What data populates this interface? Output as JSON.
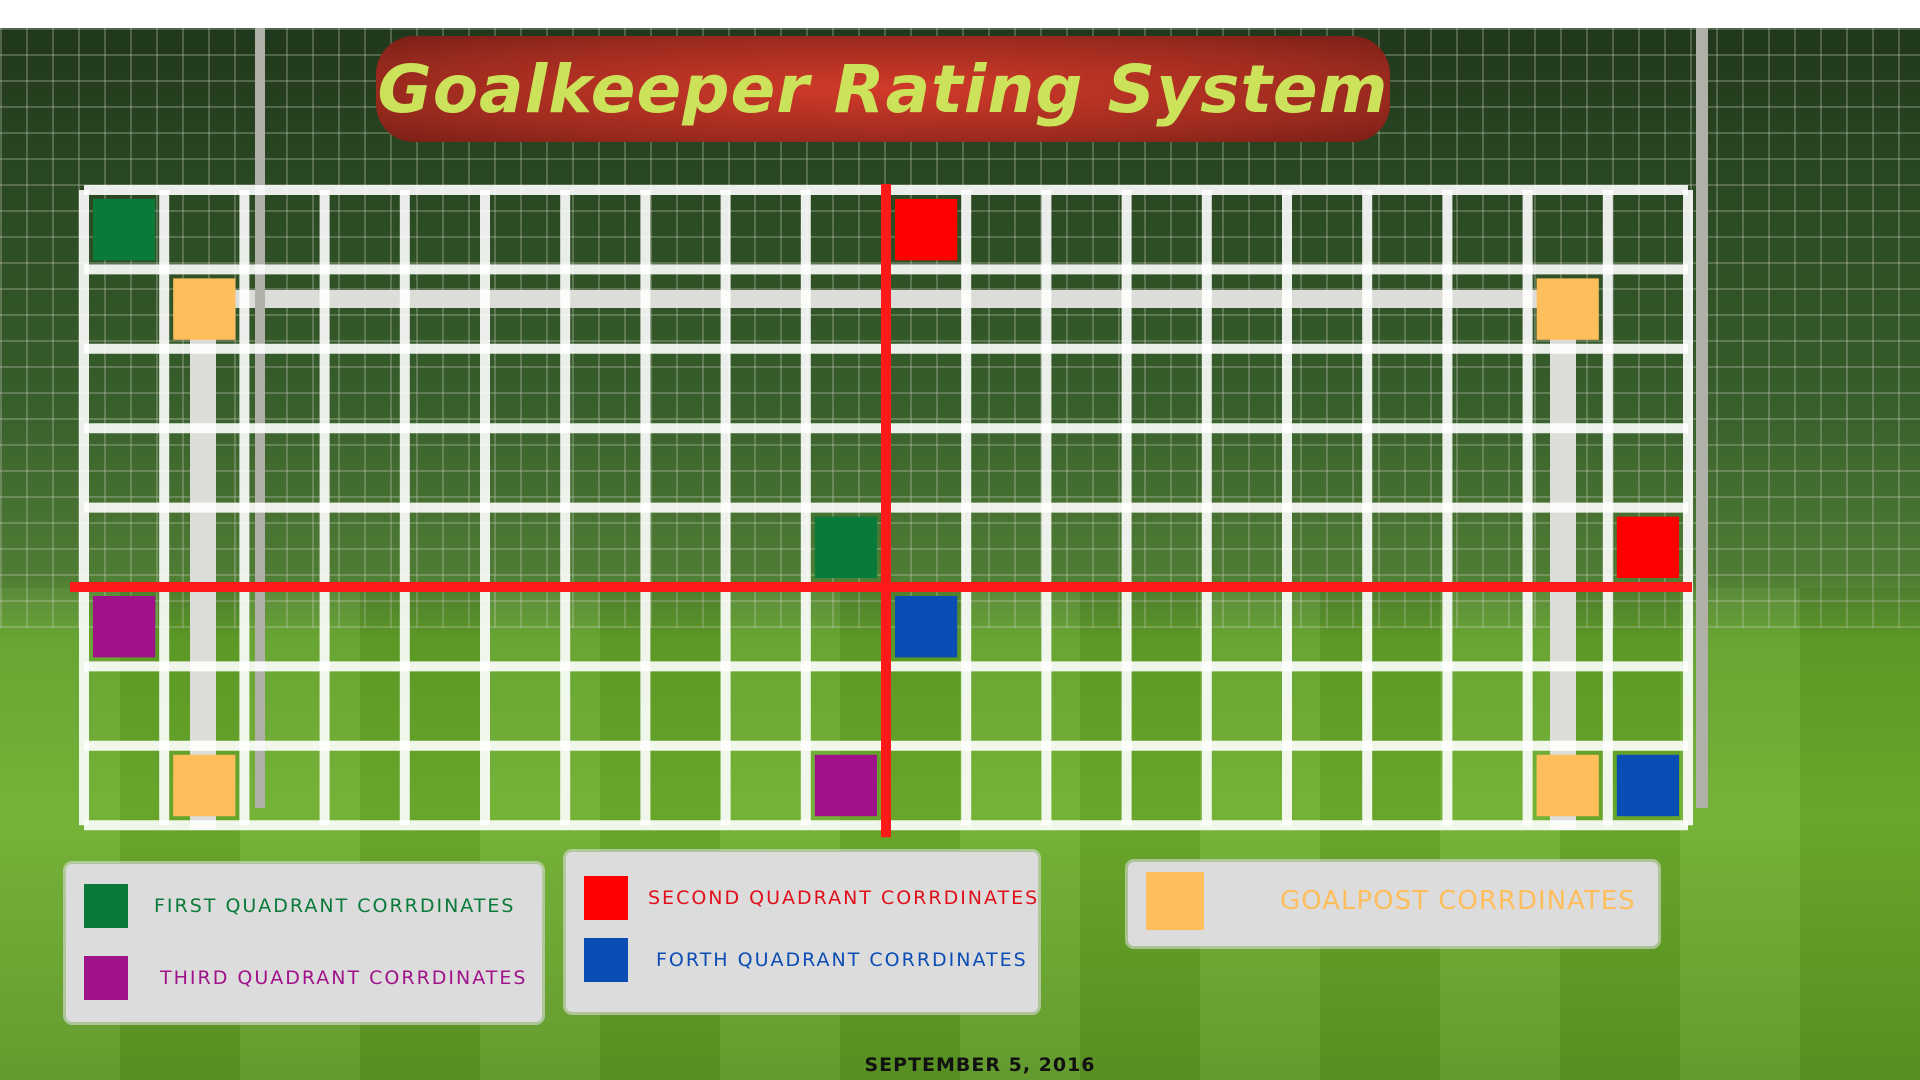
{
  "title": "Goalkeeper Rating System",
  "date": "SEPTEMBER 5, 2016",
  "colors": {
    "first_quadrant": "#0a7a3a",
    "second_quadrant": "#ff0000",
    "third_quadrant": "#a0128a",
    "fourth_quadrant": "#0a4db5",
    "goalpost": "#ffbe5c",
    "axis": "#ff1a1a",
    "grid": "#ffffff"
  },
  "grid": {
    "columns": 20,
    "rows": 8
  },
  "markers": [
    {
      "col": 0,
      "row": 0,
      "type": "first_quadrant"
    },
    {
      "col": 1,
      "row": 1,
      "type": "goalpost"
    },
    {
      "col": 9,
      "row": 4,
      "type": "first_quadrant"
    },
    {
      "col": 10,
      "row": 0,
      "type": "second_quadrant"
    },
    {
      "col": 18,
      "row": 1,
      "type": "goalpost"
    },
    {
      "col": 19,
      "row": 4,
      "type": "second_quadrant"
    },
    {
      "col": 0,
      "row": 5,
      "type": "third_quadrant"
    },
    {
      "col": 1,
      "row": 7,
      "type": "goalpost"
    },
    {
      "col": 9,
      "row": 7,
      "type": "third_quadrant"
    },
    {
      "col": 10,
      "row": 5,
      "type": "fourth_quadrant"
    },
    {
      "col": 18,
      "row": 7,
      "type": "goalpost"
    },
    {
      "col": 19,
      "row": 7,
      "type": "fourth_quadrant"
    }
  ],
  "legend": {
    "first": "FIRST QUADRANT CORRDINATES",
    "third": "THIRD QUADRANT CORRDINATES",
    "second": "SECOND QUADRANT CORRDINATES",
    "fourth": "FORTH QUADRANT CORRDINATES",
    "goalpost": "GOALPOST CORRDINATES"
  }
}
